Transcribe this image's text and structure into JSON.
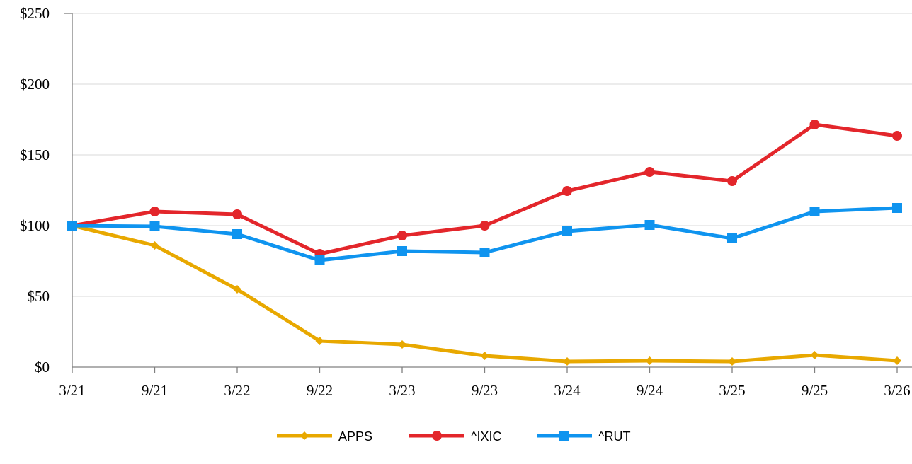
{
  "chart_data": {
    "type": "line",
    "categories": [
      "3/21",
      "9/21",
      "3/22",
      "9/22",
      "3/23",
      "9/23",
      "3/24",
      "9/24",
      "3/25",
      "9/25",
      "3/26"
    ],
    "y_ticks": [
      "$0",
      "$50",
      "$100",
      "$150",
      "$200",
      "$250"
    ],
    "ylim": [
      0,
      250
    ],
    "grid": true,
    "legend_position": "bottom-center",
    "series": [
      {
        "name": "APPS",
        "color": "#e8a800",
        "marker": "diamond",
        "values": [
          100,
          86,
          55,
          18.5,
          16,
          8,
          4,
          4.5,
          4,
          8.5,
          4.5
        ]
      },
      {
        "name": "^IXIC",
        "color": "#e3262b",
        "marker": "circle",
        "values": [
          100,
          110,
          108,
          80,
          93,
          100,
          124.5,
          138,
          131.5,
          171.5,
          163.5
        ]
      },
      {
        "name": "^RUT",
        "color": "#0f94ef",
        "marker": "square",
        "values": [
          100,
          99.5,
          94,
          75.5,
          82,
          81,
          96,
          100.5,
          91,
          110,
          112.5
        ]
      }
    ]
  }
}
